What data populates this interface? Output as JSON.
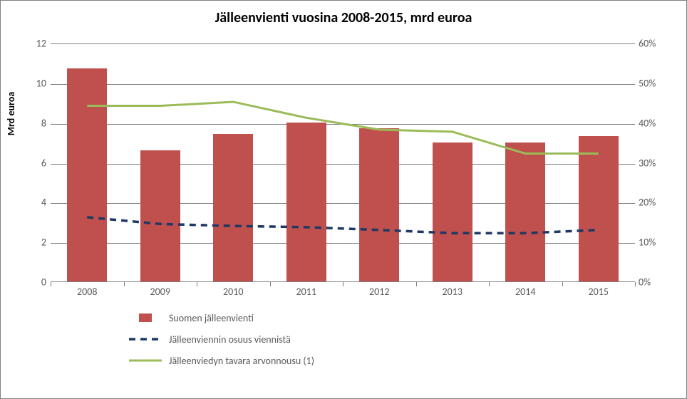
{
  "chart": {
    "title": "Jälleenvienti vuosina 2008-2015, mrd euroa",
    "y_left_title": "Mrd euroa",
    "title_fontsize": 20,
    "label_fontsize": 14,
    "background_color": "#ffffff",
    "grid_color": "#808080",
    "border_color": "#808080",
    "categories": [
      "2008",
      "2009",
      "2010",
      "2011",
      "2012",
      "2013",
      "2014",
      "2015"
    ],
    "y_left": {
      "min": 0,
      "max": 12,
      "step": 2
    },
    "y_right": {
      "min": 0,
      "max": 60,
      "step": 10,
      "suffix": "%"
    },
    "bars": {
      "label": "Suomen jälleenvienti",
      "color": "#c0504d",
      "values": [
        10.7,
        6.6,
        7.4,
        8.0,
        7.7,
        7.0,
        7.0,
        7.3
      ],
      "width_frac": 0.55
    },
    "line_dashed": {
      "label": "Jälleenviennin osuus viennistä",
      "color": "#1f3864",
      "stroke_width": 3.5,
      "dash": "9,7",
      "values_pct": [
        16.5,
        14.8,
        14.3,
        14.0,
        13.3,
        12.5,
        12.5,
        13.3
      ]
    },
    "line_solid": {
      "label": "Jälleenviedyn tavara arvonnousu (1)",
      "color": "#9bbb59",
      "stroke_width": 3,
      "values_pct": [
        44.5,
        44.5,
        45.5,
        41.5,
        38.5,
        38.0,
        32.5,
        32.5
      ]
    }
  }
}
